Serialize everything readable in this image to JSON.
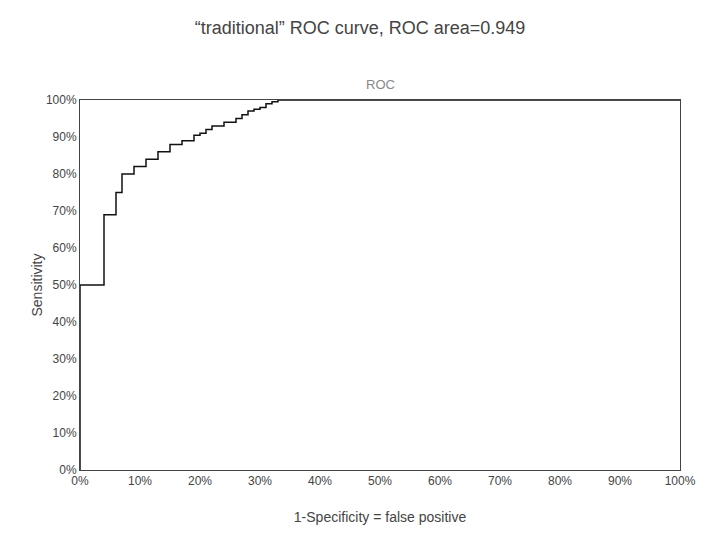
{
  "chart_data": {
    "type": "line",
    "title": "“traditional” ROC curve, ROC area=0.949",
    "subtitle": "ROC",
    "x_label": "1-Specificity = false positive",
    "y_label": "Sensitivity",
    "x": [
      0.0,
      0.0,
      0.04,
      0.04,
      0.06,
      0.06,
      0.07,
      0.07,
      0.09,
      0.09,
      0.11,
      0.11,
      0.13,
      0.13,
      0.15,
      0.15,
      0.17,
      0.17,
      0.19,
      0.19,
      0.2,
      0.2,
      0.21,
      0.21,
      0.22,
      0.22,
      0.24,
      0.24,
      0.26,
      0.26,
      0.27,
      0.27,
      0.28,
      0.28,
      0.29,
      0.29,
      0.3,
      0.3,
      0.31,
      0.31,
      0.32,
      0.32,
      0.33,
      0.33,
      1.0
    ],
    "values": [
      0.0,
      0.5,
      0.5,
      0.69,
      0.69,
      0.75,
      0.75,
      0.8,
      0.8,
      0.82,
      0.82,
      0.84,
      0.84,
      0.86,
      0.86,
      0.88,
      0.88,
      0.89,
      0.89,
      0.905,
      0.905,
      0.91,
      0.91,
      0.92,
      0.92,
      0.93,
      0.93,
      0.94,
      0.94,
      0.95,
      0.95,
      0.96,
      0.96,
      0.97,
      0.97,
      0.975,
      0.975,
      0.98,
      0.98,
      0.99,
      0.99,
      0.995,
      0.995,
      1.0,
      1.0
    ],
    "color": "#111111",
    "xlim": [
      0.0,
      1.0
    ],
    "ylim": [
      0.0,
      1.0
    ],
    "xticks": [
      {
        "value": 0.0,
        "label": "0%"
      },
      {
        "value": 0.1,
        "label": "10%"
      },
      {
        "value": 0.2,
        "label": "20%"
      },
      {
        "value": 0.3,
        "label": "30%"
      },
      {
        "value": 0.4,
        "label": "40%"
      },
      {
        "value": 0.5,
        "label": "50%"
      },
      {
        "value": 0.6,
        "label": "60%"
      },
      {
        "value": 0.7,
        "label": "70%"
      },
      {
        "value": 0.8,
        "label": "80%"
      },
      {
        "value": 0.9,
        "label": "90%"
      },
      {
        "value": 1.0,
        "label": "100%"
      }
    ],
    "yticks": [
      {
        "value": 0.0,
        "label": "0%"
      },
      {
        "value": 0.1,
        "label": "10%"
      },
      {
        "value": 0.2,
        "label": "20%"
      },
      {
        "value": 0.3,
        "label": "30%"
      },
      {
        "value": 0.4,
        "label": "40%"
      },
      {
        "value": 0.5,
        "label": "50%"
      },
      {
        "value": 0.6,
        "label": "60%"
      },
      {
        "value": 0.7,
        "label": "70%"
      },
      {
        "value": 0.8,
        "label": "80%"
      },
      {
        "value": 0.9,
        "label": "90%"
      },
      {
        "value": 1.0,
        "label": "100%"
      }
    ],
    "grid": false
  }
}
